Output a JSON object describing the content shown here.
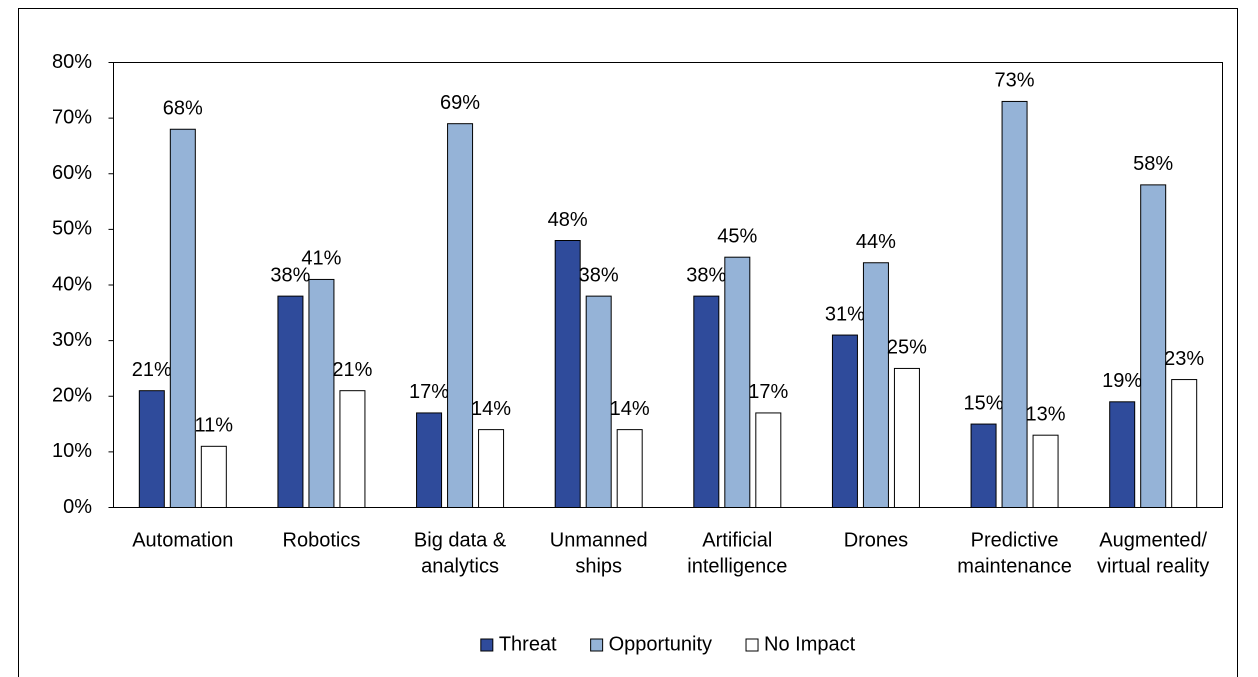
{
  "chart_data": {
    "type": "bar",
    "categories": [
      [
        "Automation"
      ],
      [
        "Robotics"
      ],
      [
        "Big data &",
        "analytics"
      ],
      [
        "Unmanned",
        "ships"
      ],
      [
        "Artificial",
        "intelligence"
      ],
      [
        "Drones"
      ],
      [
        "Predictive",
        "maintenance"
      ],
      [
        "Augmented/",
        "virtual reality"
      ]
    ],
    "series": [
      {
        "name": "Threat",
        "color": "#2f4b9b",
        "values": [
          21,
          38,
          17,
          48,
          38,
          31,
          15,
          19
        ],
        "value_labels": [
          "21%",
          "38%",
          "17%",
          "48%",
          "38%",
          "31%",
          "15%",
          "19%"
        ]
      },
      {
        "name": "Opportunity",
        "color": "#95b3d7",
        "values": [
          68,
          41,
          69,
          38,
          45,
          44,
          73,
          58
        ],
        "value_labels": [
          "68%",
          "41%",
          "69%",
          "38%",
          "45%",
          "44%",
          "73%",
          "58%"
        ]
      },
      {
        "name": "No Impact",
        "color": "#ffffff",
        "values": [
          11,
          21,
          14,
          14,
          17,
          25,
          13,
          23
        ],
        "value_labels": [
          "11%",
          "21%",
          "14%",
          "14%",
          "17%",
          "25%",
          "13%",
          "23%"
        ]
      }
    ],
    "ylim": [
      0,
      80
    ],
    "yticks": [
      {
        "value": 0,
        "label": "0%"
      },
      {
        "value": 10,
        "label": "10%"
      },
      {
        "value": 20,
        "label": "20%"
      },
      {
        "value": 30,
        "label": "30%"
      },
      {
        "value": 40,
        "label": "40%"
      },
      {
        "value": 50,
        "label": "50%"
      },
      {
        "value": 60,
        "label": "60%"
      },
      {
        "value": 70,
        "label": "70%"
      },
      {
        "value": 80,
        "label": "80%"
      }
    ],
    "grid": false,
    "legend": "bottom"
  }
}
